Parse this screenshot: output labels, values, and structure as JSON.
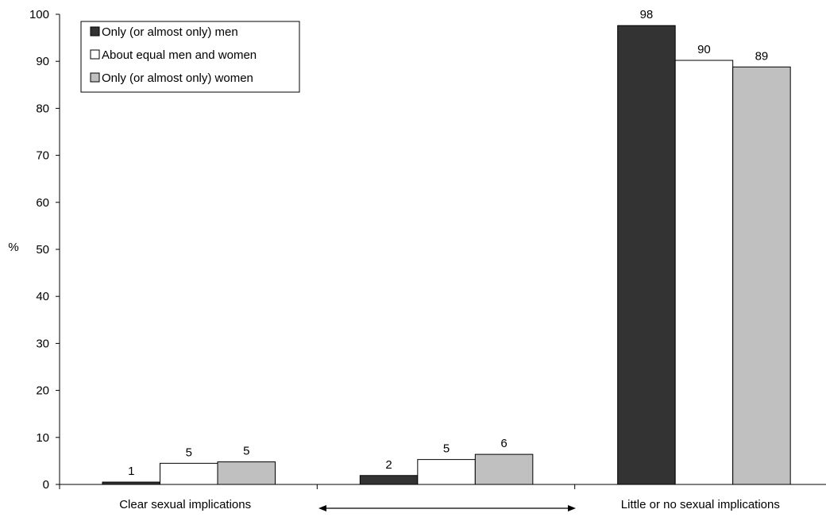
{
  "chart_data": {
    "type": "bar",
    "ylabel": "%",
    "ylim": [
      0,
      100
    ],
    "yticks": [
      0,
      10,
      20,
      30,
      40,
      50,
      60,
      70,
      80,
      90,
      100
    ],
    "grid": false,
    "legend_position": "top-left",
    "categories": [
      "Clear sexual implications",
      "",
      "Little or no sexual implications"
    ],
    "series": [
      {
        "name": "Only (or almost only) men",
        "color": "#333333",
        "values": [
          0.5,
          1.9,
          97.6
        ],
        "labels": [
          "1",
          "2",
          "98"
        ]
      },
      {
        "name": "About equal men and women",
        "color": "#ffffff",
        "values": [
          4.5,
          5.3,
          90.2
        ],
        "labels": [
          "5",
          "5",
          "90"
        ]
      },
      {
        "name": "Only (or almost only) women",
        "color": "#c0c0c0",
        "values": [
          4.8,
          6.4,
          88.8
        ],
        "labels": [
          "5",
          "6",
          "89"
        ]
      }
    ],
    "annotations": [
      {
        "type": "double-arrow",
        "between_categories": [
          0,
          2
        ]
      }
    ]
  }
}
